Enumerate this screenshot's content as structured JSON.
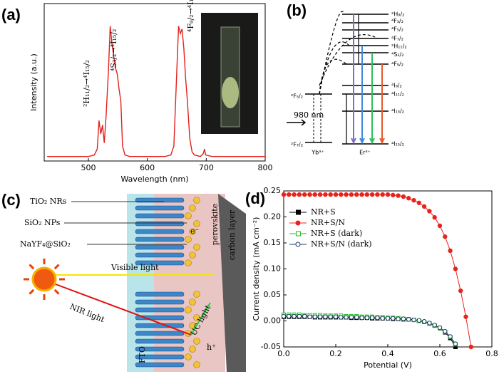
{
  "panel_labels": [
    "(a)",
    "(b)",
    "(c)",
    "(d)"
  ],
  "chart_data": [
    {
      "type": "line",
      "x_label": "Wavelength (nm)",
      "y_label": "Intensity (a.u.)",
      "xlim": [
        425,
        800
      ],
      "xticks": [
        500,
        600,
        700,
        800
      ],
      "ylim": [
        0,
        105
      ],
      "annotations": [
        "²H₁₁/₂→⁴I₁₅/₂",
        "⁴S₃/₂→⁴I₁₅/₂",
        "⁴F₉/₂→⁴I₁₅/₂"
      ],
      "series": [
        {
          "color": "#e3211c",
          "x": [
            430,
            480,
            500,
            510,
            515,
            518,
            521,
            524,
            527,
            530,
            534,
            537,
            540,
            543,
            546,
            549,
            552,
            555,
            558,
            562,
            570,
            600,
            630,
            640,
            645,
            650,
            653,
            656,
            659,
            662,
            665,
            668,
            672,
            676,
            680,
            690,
            695,
            697,
            699,
            710,
            750,
            800
          ],
          "values": [
            3,
            3,
            3,
            4,
            8,
            27,
            18,
            24,
            12,
            30,
            60,
            90,
            78,
            70,
            62,
            58,
            48,
            40,
            10,
            4,
            3,
            3,
            3,
            4,
            10,
            60,
            90,
            85,
            88,
            75,
            55,
            40,
            15,
            6,
            4,
            3,
            5,
            8,
            4,
            3,
            3,
            3
          ]
        }
      ]
    },
    {
      "type": "line",
      "x_label": "Potential (V)",
      "y_label": "Current density (mA cm⁻²)",
      "xlim": [
        0,
        0.8
      ],
      "xticks": [
        {
          "value": 0,
          "label": "0.0"
        },
        0.2,
        0.4,
        0.6,
        0.8
      ],
      "ylim": [
        -0.05,
        0.25
      ],
      "yticks": [
        -0.05,
        {
          "value": 0,
          "label": "0.00"
        },
        0.05,
        {
          "value": 0.1,
          "label": "0.10"
        },
        0.15,
        {
          "value": 0.2,
          "label": "0.20"
        },
        0.25
      ],
      "legend": "upper left",
      "series": [
        {
          "name": "NR+S",
          "color": "#000000",
          "marker": "square",
          "filled": true,
          "x": [
            0,
            0.02,
            0.04,
            0.06,
            0.08,
            0.1,
            0.12,
            0.14,
            0.16,
            0.18,
            0.2,
            0.22,
            0.24,
            0.26,
            0.28,
            0.3,
            0.32,
            0.34,
            0.36,
            0.38,
            0.4,
            0.42,
            0.44,
            0.46,
            0.48,
            0.5,
            0.52,
            0.54,
            0.56,
            0.58,
            0.6,
            0.62,
            0.64,
            0.66
          ],
          "values": [
            0.008,
            0.008,
            0.008,
            0.008,
            0.008,
            0.008,
            0.007,
            0.007,
            0.007,
            0.007,
            0.007,
            0.007,
            0.007,
            0.006,
            0.006,
            0.006,
            0.006,
            0.005,
            0.005,
            0.005,
            0.005,
            0.004,
            0.004,
            0.003,
            0.003,
            0.002,
            0.0,
            -0.002,
            -0.005,
            -0.009,
            -0.014,
            -0.022,
            -0.033,
            -0.05
          ]
        },
        {
          "name": "NR+S/N",
          "color": "#e8221c",
          "marker": "circle",
          "filled": true,
          "x": [
            0,
            0.02,
            0.04,
            0.06,
            0.08,
            0.1,
            0.12,
            0.14,
            0.16,
            0.18,
            0.2,
            0.22,
            0.24,
            0.26,
            0.28,
            0.3,
            0.32,
            0.34,
            0.36,
            0.38,
            0.4,
            0.42,
            0.44,
            0.46,
            0.48,
            0.5,
            0.52,
            0.54,
            0.56,
            0.58,
            0.6,
            0.62,
            0.64,
            0.66,
            0.68,
            0.7,
            0.72
          ],
          "values": [
            0.243,
            0.243,
            0.243,
            0.243,
            0.243,
            0.243,
            0.243,
            0.243,
            0.243,
            0.243,
            0.243,
            0.243,
            0.243,
            0.243,
            0.243,
            0.243,
            0.243,
            0.243,
            0.243,
            0.243,
            0.243,
            0.242,
            0.241,
            0.239,
            0.236,
            0.232,
            0.227,
            0.22,
            0.211,
            0.199,
            0.183,
            0.162,
            0.135,
            0.1,
            0.058,
            0.008,
            -0.05
          ]
        },
        {
          "name": "NR+S (dark)",
          "color": "#22bb22",
          "marker": "square",
          "filled": false,
          "x": [
            0,
            0.02,
            0.04,
            0.06,
            0.08,
            0.1,
            0.12,
            0.14,
            0.16,
            0.18,
            0.2,
            0.22,
            0.24,
            0.26,
            0.28,
            0.3,
            0.32,
            0.34,
            0.36,
            0.38,
            0.4,
            0.42,
            0.44,
            0.46,
            0.48,
            0.5,
            0.52,
            0.54,
            0.56,
            0.58,
            0.6,
            0.62,
            0.64,
            0.66
          ],
          "values": [
            0.012,
            0.012,
            0.012,
            0.012,
            0.011,
            0.011,
            0.011,
            0.011,
            0.01,
            0.01,
            0.01,
            0.01,
            0.009,
            0.009,
            0.009,
            0.008,
            0.008,
            0.008,
            0.007,
            0.007,
            0.006,
            0.006,
            0.005,
            0.004,
            0.003,
            0.002,
            0.0,
            -0.002,
            -0.005,
            -0.009,
            -0.014,
            -0.021,
            -0.031,
            -0.045
          ]
        },
        {
          "name": "NR+S/N (dark)",
          "color": "#1f3d66",
          "marker": "circle",
          "filled": false,
          "x": [
            0,
            0.02,
            0.04,
            0.06,
            0.08,
            0.1,
            0.12,
            0.14,
            0.16,
            0.18,
            0.2,
            0.22,
            0.24,
            0.26,
            0.28,
            0.3,
            0.32,
            0.34,
            0.36,
            0.38,
            0.4,
            0.42,
            0.44,
            0.46,
            0.48,
            0.5,
            0.52,
            0.54,
            0.56,
            0.58,
            0.6,
            0.62,
            0.64,
            0.66
          ],
          "values": [
            0.009,
            0.009,
            0.009,
            0.009,
            0.009,
            0.008,
            0.008,
            0.008,
            0.008,
            0.008,
            0.008,
            0.007,
            0.007,
            0.007,
            0.007,
            0.006,
            0.006,
            0.006,
            0.006,
            0.005,
            0.005,
            0.005,
            0.004,
            0.004,
            0.003,
            0.002,
            0.001,
            -0.001,
            -0.004,
            -0.008,
            -0.013,
            -0.02,
            -0.03,
            -0.044
          ]
        }
      ]
    }
  ],
  "energy_diagram": {
    "excitation": "980 nm",
    "yb": {
      "label": "Yb³⁺",
      "levels": [
        "²F₅/₂",
        "²F₇/₂"
      ]
    },
    "er": {
      "label": "Er³⁺",
      "levels": [
        "²H₉/₂",
        "⁴F₃/₂",
        "⁴F₅/₂",
        "⁴F₇/₂",
        "²H₁₁/₂",
        "⁴S₃/₂",
        "⁴F₉/₂",
        "⁴I₉/₂",
        "⁴I₁₁/₂",
        "⁴I₁₃/₂",
        "⁴I₁₅/₂"
      ]
    }
  },
  "schematic": {
    "labels": [
      "TiO₂ NRs",
      "SiO₂ NPs",
      "NaYF₄@SiO₂",
      "Visible light",
      "NIR light",
      "FTO",
      "UC light",
      "perovskite",
      "carbon layer",
      "e⁻",
      "h⁺"
    ]
  }
}
